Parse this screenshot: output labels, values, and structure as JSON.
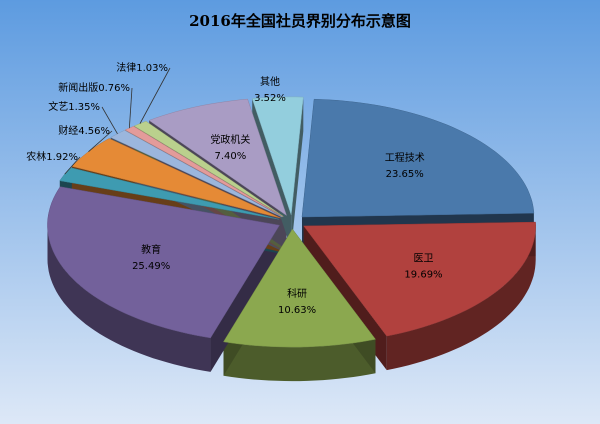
{
  "chart_data": {
    "type": "pie",
    "title": "2016年全国社员界别分布示意图",
    "categories": [
      "工程技术",
      "医卫",
      "科研",
      "教育",
      "农林",
      "财经",
      "文艺",
      "新闻出版",
      "法律",
      "党政机关",
      "其他"
    ],
    "values": [
      23.65,
      19.69,
      10.63,
      25.49,
      1.92,
      4.56,
      1.35,
      0.76,
      1.03,
      7.4,
      3.52
    ],
    "value_labels": [
      "23.65%",
      "19.69%",
      "10.63%",
      "25.49%",
      "1.92%",
      "4.56%",
      "1.35%",
      "0.76%",
      "1.03%",
      "7.40%",
      "3.52%"
    ],
    "colors": [
      "#4a79ab",
      "#b1413e",
      "#8ba84f",
      "#73619b",
      "#3e9bb1",
      "#e58a36",
      "#9bb6dd",
      "#e39b9a",
      "#bad08d",
      "#a99cc4",
      "#93cedd"
    ]
  }
}
